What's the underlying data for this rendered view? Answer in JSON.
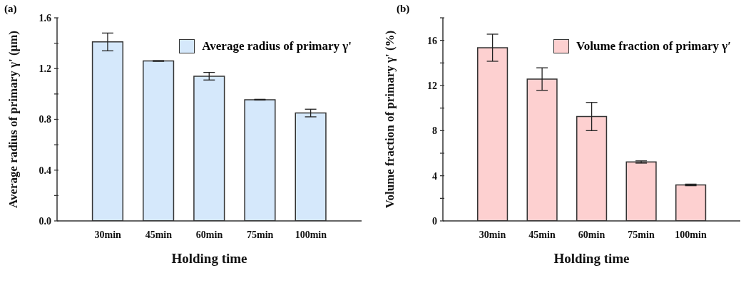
{
  "chart_data": [
    {
      "type": "bar",
      "annotations": [
        "(a)"
      ],
      "xlabel": "Holding time",
      "ylabel": "Average radius of primary γ' (μm)",
      "categories": [
        "30min",
        "45min",
        "60min",
        "75min",
        "100min"
      ],
      "series": [
        {
          "name": "Average radius of primary γ'",
          "color": "#d5e8fb",
          "values": [
            1.41,
            1.26,
            1.14,
            0.955,
            0.85
          ],
          "errors": [
            0.07,
            0.003,
            0.03,
            0.003,
            0.03
          ]
        }
      ],
      "ylim": [
        0,
        1.6
      ],
      "yticks": [
        {
          "value": 0,
          "label": "0.0"
        },
        {
          "value": 0.2,
          "label": null
        },
        0.4,
        {
          "value": 0.6,
          "label": null
        },
        0.8,
        {
          "value": 1.0,
          "label": null
        },
        1.2,
        {
          "value": 1.4,
          "label": null
        },
        1.6
      ],
      "grid": false,
      "legend": "top right"
    },
    {
      "type": "bar",
      "annotations": [
        "(b)"
      ],
      "xlabel": "Holding time",
      "ylabel": "Volume fraction of primary γ' (%)",
      "categories": [
        "30min",
        "45min",
        "60min",
        "75min",
        "100min"
      ],
      "series": [
        {
          "name": "Volume fraction of primary γ′",
          "color": "#fdd0d0",
          "values": [
            15.35,
            12.57,
            9.25,
            5.22,
            3.19
          ],
          "errors": [
            1.2,
            1.0,
            1.25,
            0.1,
            0.07
          ]
        }
      ],
      "ylim": [
        0,
        18
      ],
      "yticks": [
        0,
        {
          "value": 2,
          "label": null
        },
        4,
        {
          "value": 6,
          "label": null
        },
        8,
        {
          "value": 10,
          "label": null
        },
        12,
        {
          "value": 14,
          "label": null
        },
        16,
        {
          "value": 18,
          "label": null
        }
      ],
      "grid": false,
      "legend": "top right"
    }
  ]
}
